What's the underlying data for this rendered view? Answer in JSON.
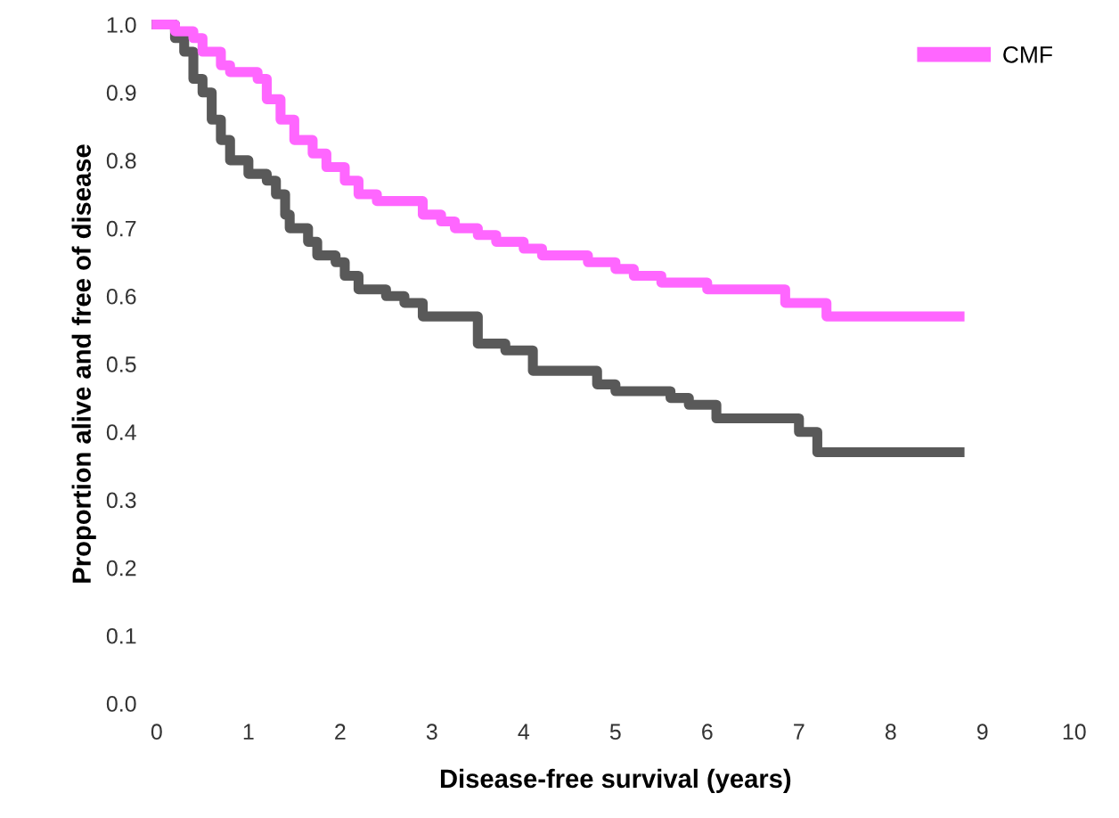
{
  "chart_data": {
    "type": "step",
    "xlabel": "Disease-free survival (years)",
    "ylabel": "Proportion alive and free of disease",
    "xlim": [
      0,
      10
    ],
    "ylim": [
      0.0,
      1.0
    ],
    "xticks": [
      0,
      1,
      2,
      3,
      4,
      5,
      6,
      7,
      8,
      9,
      10
    ],
    "yticks": [
      {
        "value": 0,
        "label": "0.0"
      },
      0.1,
      0.2,
      0.3,
      0.4,
      0.5,
      0.6,
      0.7,
      0.8,
      0.9,
      {
        "value": 1,
        "label": "1.0"
      }
    ],
    "grid": false,
    "legend": "top right",
    "marker": "none",
    "line_style": "solid",
    "series": [
      {
        "color": "#595959",
        "x": [
          0,
          0.2,
          0.3,
          0.4,
          0.5,
          0.6,
          0.7,
          0.8,
          1.0,
          1.2,
          1.3,
          1.4,
          1.45,
          1.65,
          1.75,
          1.95,
          2.05,
          2.2,
          2.5,
          2.7,
          2.9,
          3.5,
          3.8,
          4.1,
          4.8,
          5.0,
          5.6,
          5.8,
          6.1,
          7.0,
          7.2,
          8.75
        ],
        "values": [
          1.0,
          0.98,
          0.96,
          0.92,
          0.9,
          0.86,
          0.83,
          0.8,
          0.78,
          0.77,
          0.75,
          0.72,
          0.7,
          0.68,
          0.66,
          0.65,
          0.63,
          0.61,
          0.6,
          0.59,
          0.57,
          0.53,
          0.52,
          0.49,
          0.47,
          0.46,
          0.45,
          0.44,
          0.42,
          0.4,
          0.37,
          0.37
        ]
      },
      {
        "name": "CMF",
        "color": "#ff66ff",
        "x": [
          0,
          0.2,
          0.4,
          0.5,
          0.7,
          0.8,
          1.1,
          1.2,
          1.35,
          1.5,
          1.7,
          1.85,
          2.05,
          2.2,
          2.4,
          2.9,
          3.1,
          3.25,
          3.5,
          3.7,
          4.0,
          4.2,
          4.7,
          5.0,
          5.2,
          5.5,
          6.0,
          6.85,
          7.3,
          8.75
        ],
        "values": [
          1.0,
          0.99,
          0.98,
          0.96,
          0.94,
          0.93,
          0.92,
          0.89,
          0.86,
          0.83,
          0.81,
          0.79,
          0.77,
          0.75,
          0.74,
          0.72,
          0.71,
          0.7,
          0.69,
          0.68,
          0.67,
          0.66,
          0.65,
          0.64,
          0.63,
          0.62,
          0.61,
          0.59,
          0.57,
          0.57
        ]
      }
    ]
  }
}
